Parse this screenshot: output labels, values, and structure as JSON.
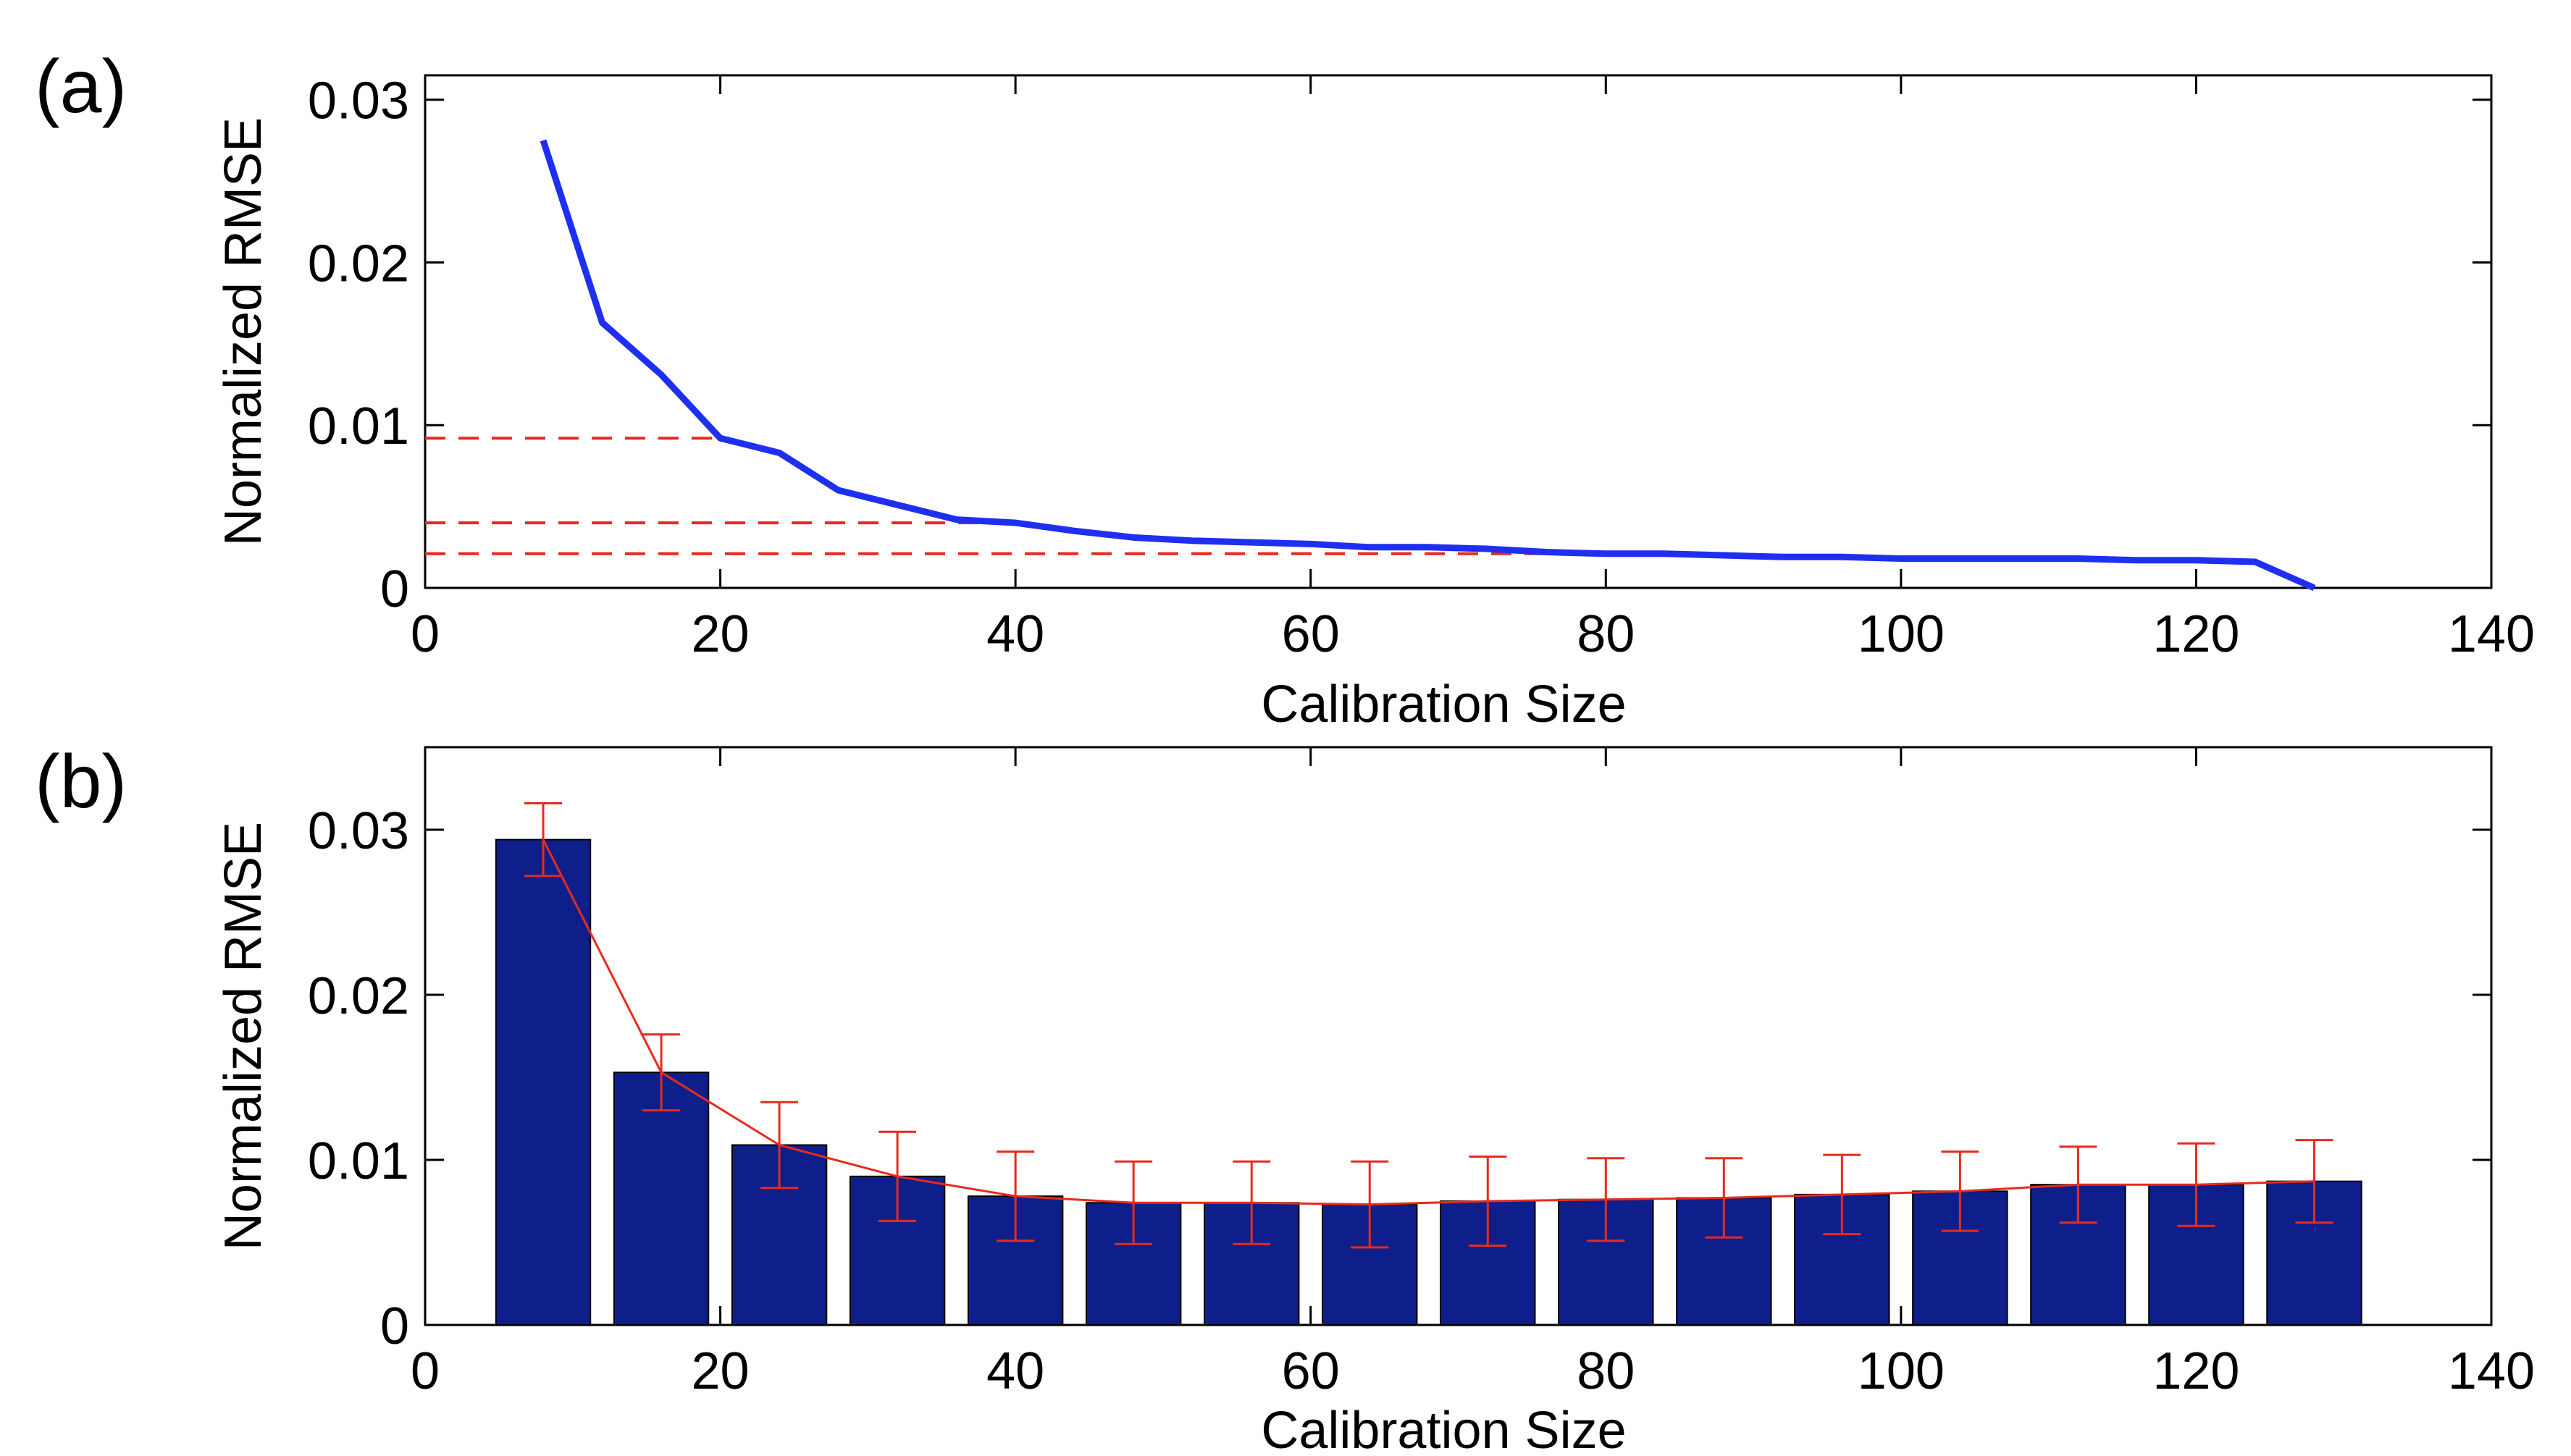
{
  "chart_data": [
    {
      "id": "a",
      "panel_label": "(a)",
      "type": "line",
      "xlabel": "Calibration Size",
      "ylabel": "Normalized RMSE",
      "xlim": [
        0,
        140
      ],
      "ylim": [
        0,
        0.0315
      ],
      "xticks": [
        0,
        20,
        40,
        60,
        80,
        100,
        120,
        140
      ],
      "yticks": [
        0,
        0.01,
        0.02,
        0.03
      ],
      "xtick_labels": [
        "0",
        "20",
        "40",
        "60",
        "80",
        "100",
        "120",
        "140"
      ],
      "ytick_labels": [
        "0",
        "0.01",
        "0.02",
        "0.03"
      ],
      "grid": false,
      "series": [
        {
          "color": "#1f2ff0",
          "style": "solid",
          "x": [
            8,
            12,
            16,
            20,
            24,
            28,
            32,
            36,
            40,
            44,
            48,
            52,
            56,
            60,
            64,
            68,
            72,
            76,
            80,
            84,
            88,
            92,
            96,
            100,
            104,
            108,
            112,
            116,
            120,
            124,
            128
          ],
          "y": [
            0.0275,
            0.0163,
            0.0131,
            0.0092,
            0.0083,
            0.006,
            0.0051,
            0.0042,
            0.004,
            0.0035,
            0.0031,
            0.0029,
            0.0028,
            0.0027,
            0.0025,
            0.0025,
            0.0024,
            0.0022,
            0.0021,
            0.0021,
            0.002,
            0.0019,
            0.0019,
            0.0018,
            0.0018,
            0.0018,
            0.0018,
            0.0017,
            0.0017,
            0.0016,
            0.0
          ]
        }
      ],
      "reference_lines": [
        {
          "y": 0.0092,
          "x_end": 20,
          "color": "#e82a1c",
          "style": "dashed"
        },
        {
          "y": 0.004,
          "x_end": 40,
          "color": "#e82a1c",
          "style": "dashed"
        },
        {
          "y": 0.0021,
          "x_end": 80,
          "color": "#e82a1c",
          "style": "dashed"
        }
      ]
    },
    {
      "id": "b",
      "panel_label": "(b)",
      "type": "bar",
      "xlabel": "Calibration Size",
      "ylabel": "Normalized RMSE",
      "xlim": [
        0,
        140
      ],
      "ylim": [
        0,
        0.035
      ],
      "xticks": [
        0,
        20,
        40,
        60,
        80,
        100,
        120,
        140
      ],
      "yticks": [
        0,
        0.01,
        0.02,
        0.03
      ],
      "xtick_labels": [
        "0",
        "20",
        "40",
        "60",
        "80",
        "100",
        "120",
        "140"
      ],
      "ytick_labels": [
        "0",
        "0.01",
        "0.02",
        "0.03"
      ],
      "grid": false,
      "bar_color": "#0e1f8c",
      "bar_width": 6.4,
      "errorbar_color": "#e82a1c",
      "x": [
        8,
        16,
        24,
        32,
        40,
        48,
        56,
        64,
        72,
        80,
        88,
        96,
        104,
        112,
        120,
        128
      ],
      "values": [
        0.0294,
        0.0153,
        0.0109,
        0.009,
        0.0078,
        0.0074,
        0.0074,
        0.0073,
        0.0075,
        0.0076,
        0.0077,
        0.0079,
        0.0081,
        0.0085,
        0.0085,
        0.0087
      ],
      "error": [
        0.0022,
        0.0023,
        0.0026,
        0.0027,
        0.0027,
        0.0025,
        0.0025,
        0.0026,
        0.0027,
        0.0025,
        0.0024,
        0.0024,
        0.0024,
        0.0023,
        0.0025,
        0.0025
      ]
    }
  ]
}
